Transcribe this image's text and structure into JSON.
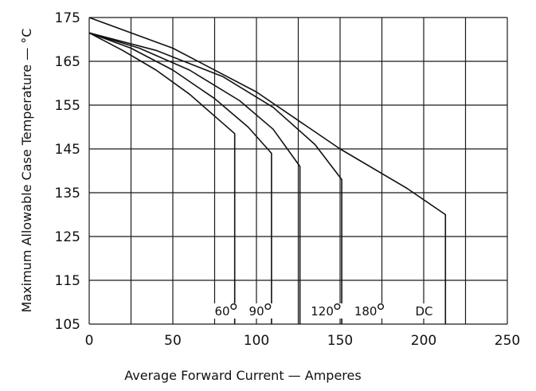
{
  "chart_data": {
    "type": "line",
    "title": "",
    "xlabel": "Average Forward Current — Amperes",
    "ylabel": "Maximum Allowable Case Temperature — °C",
    "xlim": [
      0,
      250
    ],
    "ylim": [
      105,
      175
    ],
    "x_ticks": [
      0,
      50,
      100,
      150,
      200,
      250
    ],
    "y_ticks": [
      105,
      115,
      125,
      135,
      145,
      155,
      165,
      175
    ],
    "x_tick_labels": [
      "0",
      "50",
      "100",
      "150",
      "200",
      "250"
    ],
    "y_tick_labels": [
      "105",
      "115",
      "125",
      "135",
      "145",
      "155",
      "165",
      "175"
    ],
    "grid": true,
    "x_grid_step": 25,
    "series": [
      {
        "name": "60°",
        "x": [
          0,
          20,
          40,
          60,
          75,
          87,
          87
        ],
        "y": [
          171.5,
          167.5,
          163,
          157.5,
          152.5,
          148.5,
          105
        ]
      },
      {
        "name": "90°",
        "x": [
          0,
          25,
          50,
          75,
          95,
          109,
          109
        ],
        "y": [
          171.5,
          168,
          163,
          156.5,
          150,
          144,
          105
        ]
      },
      {
        "name": "120°",
        "x": [
          0,
          30,
          60,
          90,
          110,
          126,
          126
        ],
        "y": [
          171.5,
          168,
          163,
          156,
          149.5,
          141,
          105
        ]
      },
      {
        "name": "180°",
        "x": [
          0,
          40,
          80,
          110,
          135,
          151,
          151
        ],
        "y": [
          171.5,
          167.5,
          161.5,
          154.5,
          146,
          138,
          105
        ]
      },
      {
        "name": "DC",
        "x": [
          0,
          50,
          100,
          150,
          190,
          213,
          213
        ],
        "y": [
          175,
          168,
          158,
          145,
          136,
          130,
          105
        ]
      }
    ],
    "curve_labels": [
      {
        "text": "60",
        "x": 75,
        "y": 107
      },
      {
        "text": "90",
        "x": 95.5,
        "y": 107
      },
      {
        "text": "120",
        "x": 132.5,
        "y": 107
      },
      {
        "text": "180",
        "x": 158.5,
        "y": 107
      },
      {
        "text": "DC",
        "x": 195,
        "y": 107
      }
    ]
  }
}
